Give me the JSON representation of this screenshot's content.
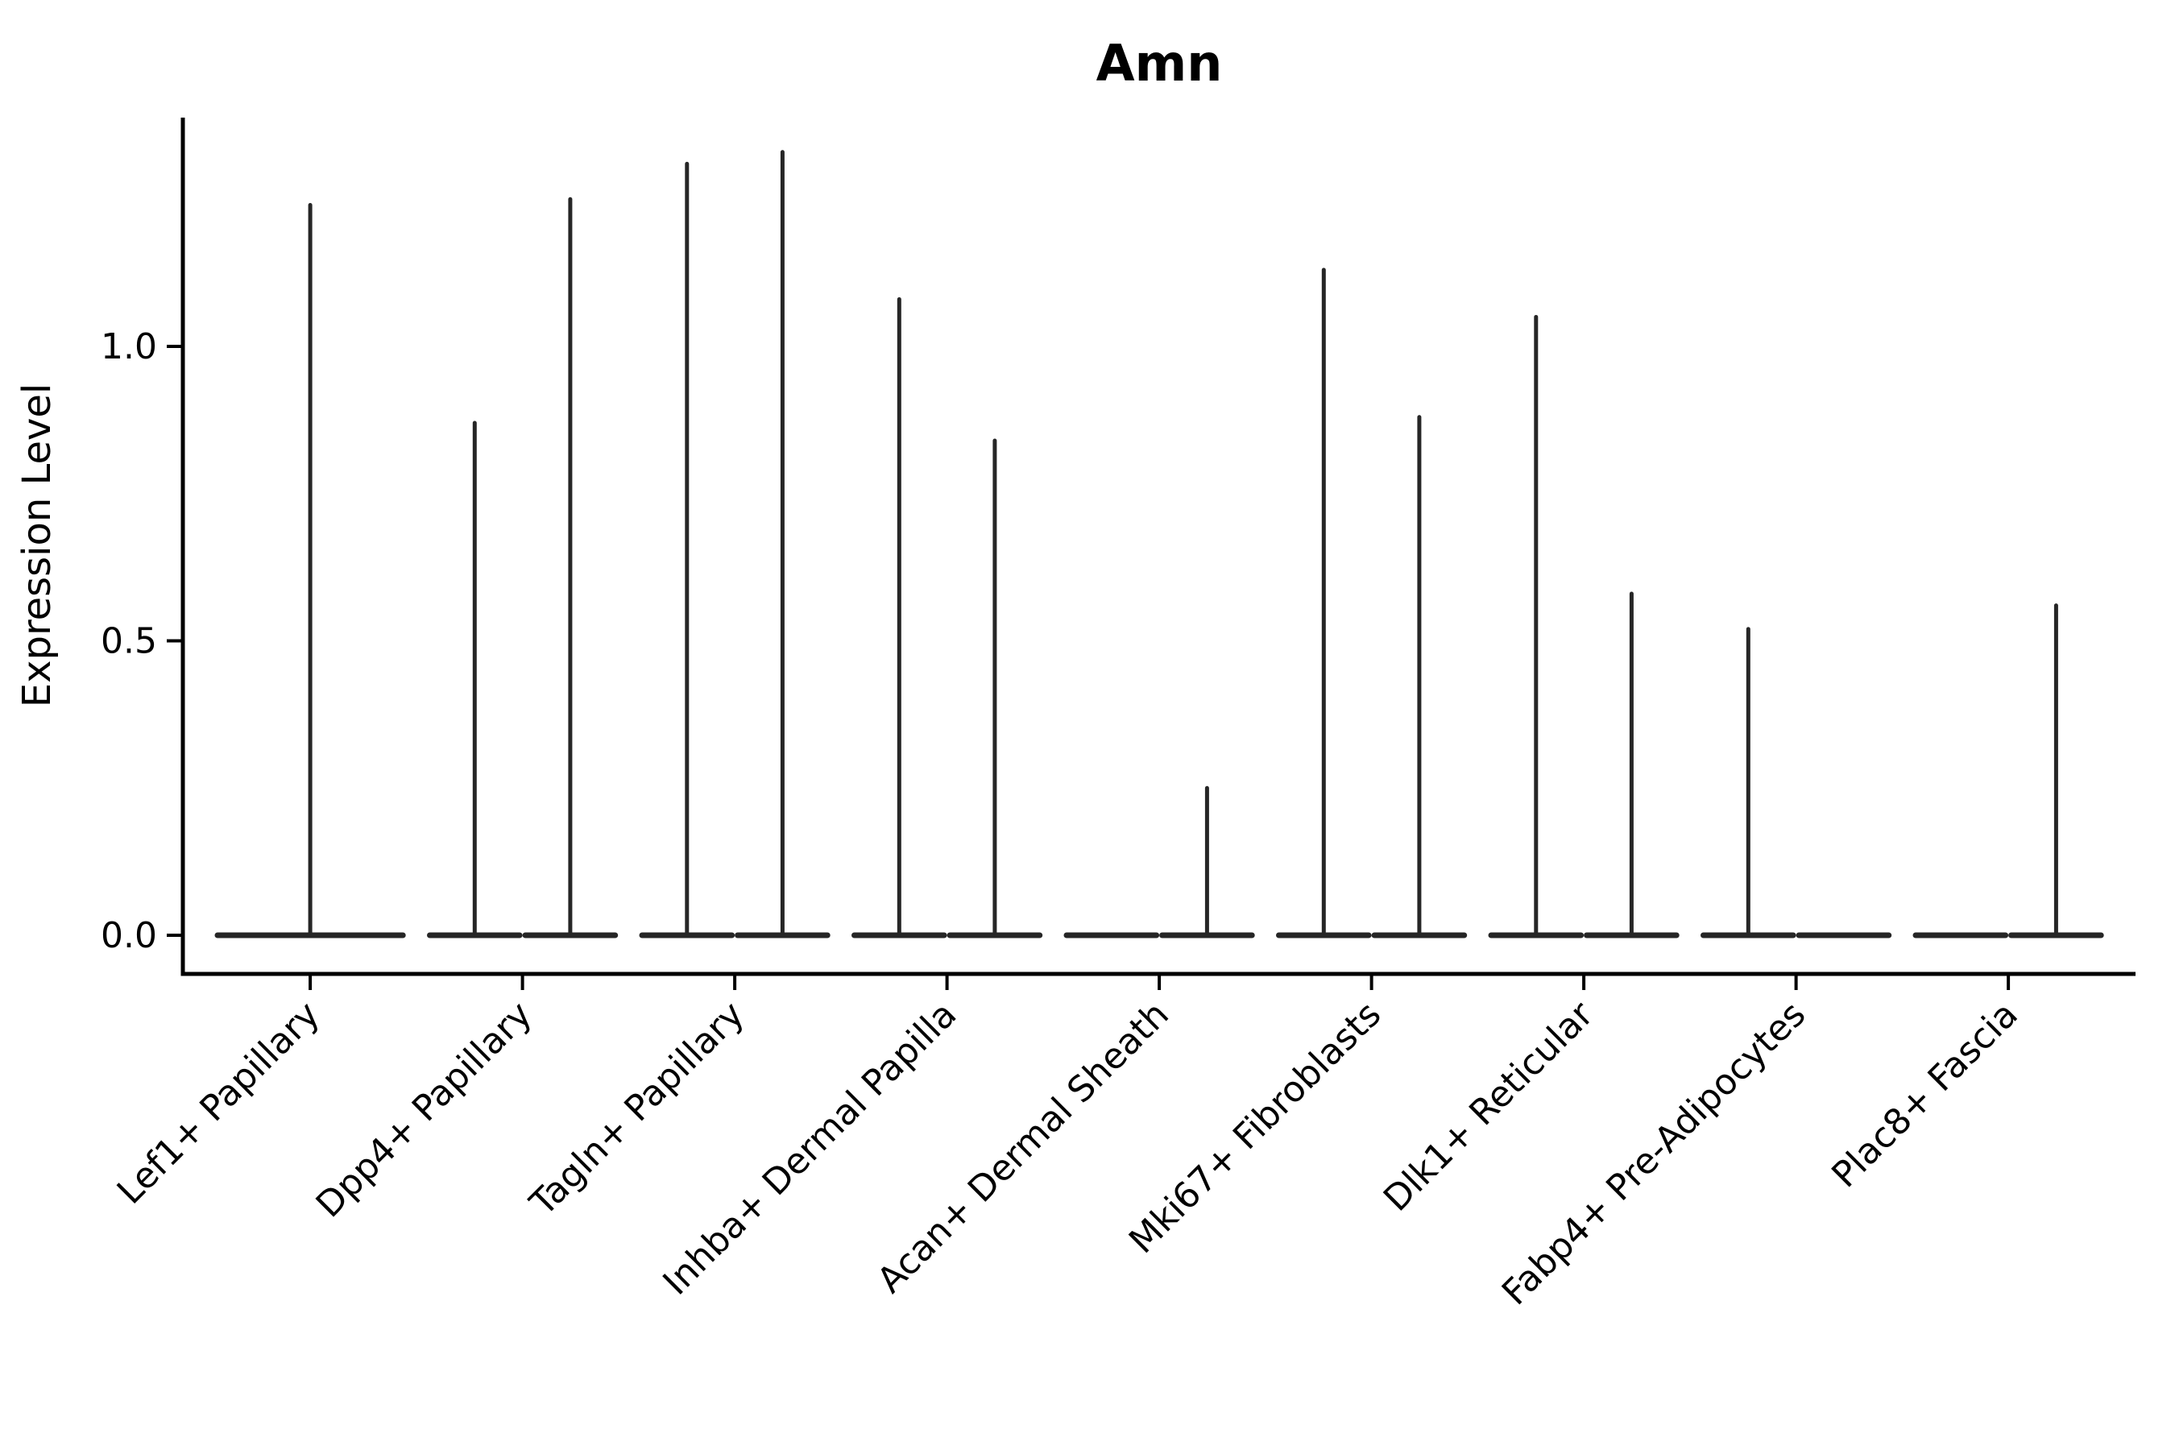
{
  "title": "Amn",
  "colors": {
    "ink": "#000000",
    "violin": "#262626",
    "background": "#ffffff"
  },
  "chart_data": {
    "type": "violin",
    "title": "Amn",
    "xlabel": "",
    "ylabel": "Expression Level",
    "ylim": [
      0,
      1.39
    ],
    "yticks": [
      0.0,
      0.5,
      1.0
    ],
    "ytick_labels": [
      "0.0",
      "0.5",
      "1.0"
    ],
    "grid": "off",
    "legend": "none",
    "orientation": "vertical",
    "note": "Each cluster holds up to two thin violins (two sample groups); flat violins sit at 0 expression; slot=full means a single centered violin spanning the cluster width.",
    "categories": [
      "Lef1+ Papillary",
      "Dpp4+ Papillary",
      "Tagln+ Papillary",
      "Inhba+ Dermal Papilla",
      "Acan+ Dermal Sheath",
      "Mki67+ Fibroblasts",
      "Dlk1+ Reticular",
      "Fabp4+ Pre-Adipocytes",
      "Plac8+ Fascia"
    ],
    "violins": [
      {
        "category": "Lef1+ Papillary",
        "slots": [
          {
            "slot": "full",
            "max": 1.24
          }
        ]
      },
      {
        "category": "Dpp4+ Papillary",
        "slots": [
          {
            "slot": "left",
            "max": 0.87
          },
          {
            "slot": "right",
            "max": 1.25
          }
        ]
      },
      {
        "category": "Tagln+ Papillary",
        "slots": [
          {
            "slot": "left",
            "max": 1.31
          },
          {
            "slot": "right",
            "max": 1.33
          }
        ]
      },
      {
        "category": "Inhba+ Dermal Papilla",
        "slots": [
          {
            "slot": "left",
            "max": 1.08
          },
          {
            "slot": "right",
            "max": 0.84
          }
        ]
      },
      {
        "category": "Acan+ Dermal Sheath",
        "slots": [
          {
            "slot": "left",
            "max": 0.0
          },
          {
            "slot": "right",
            "max": 0.25
          }
        ]
      },
      {
        "category": "Mki67+ Fibroblasts",
        "slots": [
          {
            "slot": "left",
            "max": 1.13
          },
          {
            "slot": "right",
            "max": 0.88
          }
        ]
      },
      {
        "category": "Dlk1+ Reticular",
        "slots": [
          {
            "slot": "left",
            "max": 1.05
          },
          {
            "slot": "right",
            "max": 0.58
          }
        ]
      },
      {
        "category": "Fabp4+ Pre-Adipocytes",
        "slots": [
          {
            "slot": "left",
            "max": 0.52
          },
          {
            "slot": "right",
            "max": 0.0
          }
        ]
      },
      {
        "category": "Plac8+ Fascia",
        "slots": [
          {
            "slot": "left",
            "max": 0.0
          },
          {
            "slot": "right",
            "max": 0.56
          }
        ]
      }
    ]
  }
}
